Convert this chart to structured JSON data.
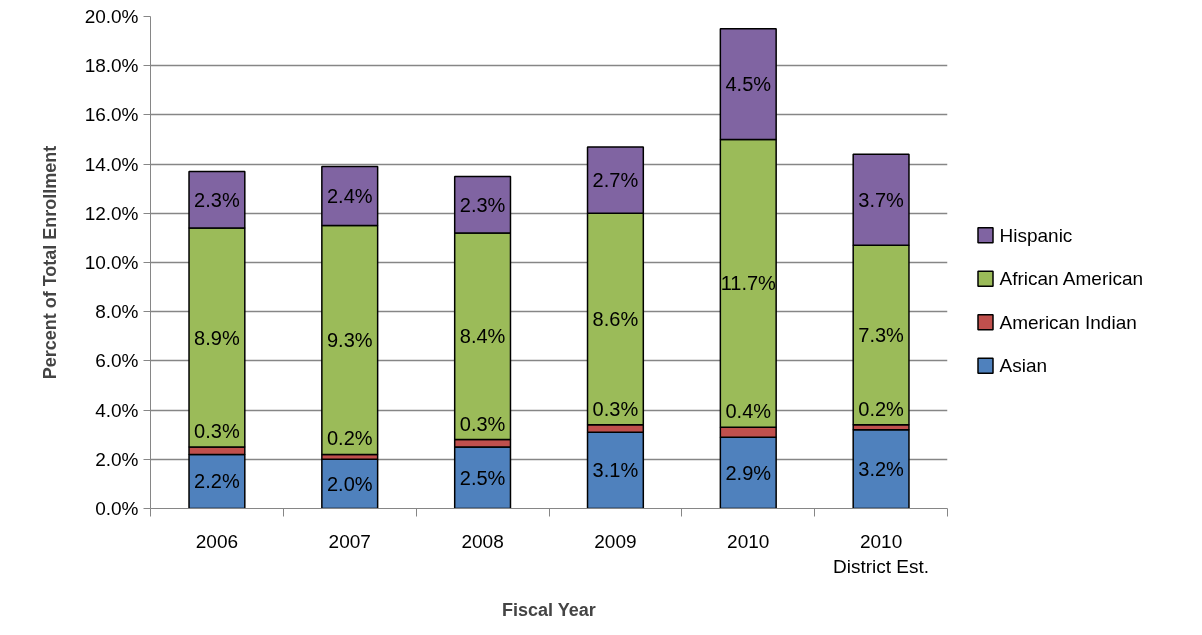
{
  "chart_data": {
    "type": "bar",
    "stacked": true,
    "xlabel": "Fiscal Year",
    "ylabel": "Percent of Total Enrollment",
    "categories": [
      "2006",
      "2007",
      "2008",
      "2009",
      "2010",
      "2010\nDistrict Est."
    ],
    "series": [
      {
        "name": "Asian",
        "color": "#4f81bd",
        "values": [
          2.2,
          2.0,
          2.5,
          3.1,
          2.9,
          3.2
        ],
        "value_labels": [
          "2.2%",
          "2.0%",
          "2.5%",
          "3.1%",
          "2.9%",
          "3.2%"
        ]
      },
      {
        "name": "American Indian",
        "color": "#c0504d",
        "values": [
          0.3,
          0.2,
          0.3,
          0.3,
          0.4,
          0.2
        ],
        "value_labels": [
          "0.3%",
          "0.2%",
          "0.3%",
          "0.3%",
          "0.4%",
          "0.2%"
        ]
      },
      {
        "name": "African American",
        "color": "#9bbb59",
        "values": [
          8.9,
          9.3,
          8.4,
          8.6,
          11.7,
          7.3
        ],
        "value_labels": [
          "8.9%",
          "9.3%",
          "8.4%",
          "8.6%",
          "11.7%",
          "7.3%"
        ]
      },
      {
        "name": "Hispanic",
        "color": "#8064a2",
        "values": [
          2.3,
          2.4,
          2.3,
          2.7,
          4.5,
          3.7
        ],
        "value_labels": [
          "2.3%",
          "2.4%",
          "2.3%",
          "2.7%",
          "4.5%",
          "3.7%"
        ]
      }
    ],
    "ylim": [
      0,
      20
    ],
    "yticks": [
      {
        "value": 0,
        "label": "0.0%"
      },
      {
        "value": 2,
        "label": "2.0%"
      },
      {
        "value": 4,
        "label": "4.0%"
      },
      {
        "value": 6,
        "label": "6.0%"
      },
      {
        "value": 8,
        "label": "8.0%"
      },
      {
        "value": 10,
        "label": "10.0%"
      },
      {
        "value": 12,
        "label": "12.0%"
      },
      {
        "value": 14,
        "label": "14.0%"
      },
      {
        "value": 16,
        "label": "16.0%"
      },
      {
        "value": 18,
        "label": "18.0%"
      },
      {
        "value": 20,
        "label": "20.0%"
      }
    ],
    "grid": "y",
    "legend": "right"
  }
}
